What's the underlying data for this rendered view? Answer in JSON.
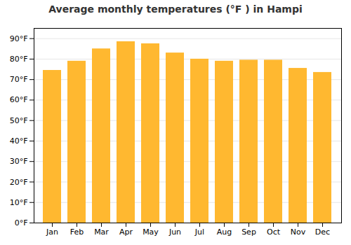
{
  "chart_data": {
    "type": "bar",
    "title": "Average monthly temperatures (°F ) in Hampi",
    "categories": [
      "Jan",
      "Feb",
      "Mar",
      "Apr",
      "May",
      "Jun",
      "Jul",
      "Aug",
      "Sep",
      "Oct",
      "Nov",
      "Dec"
    ],
    "values": [
      74.5,
      79,
      85,
      88.5,
      87.5,
      83,
      80,
      79,
      79.5,
      79.5,
      75.5,
      73.5
    ],
    "color": "#FFB830",
    "ylim": [
      0,
      95
    ],
    "yticks": [
      {
        "value": 0,
        "label": "0°F"
      },
      {
        "value": 10,
        "label": "10°F"
      },
      {
        "value": 20,
        "label": "20°F"
      },
      {
        "value": 30,
        "label": "30°F"
      },
      {
        "value": 40,
        "label": "40°F"
      },
      {
        "value": 50,
        "label": "50°F"
      },
      {
        "value": 60,
        "label": "60°F"
      },
      {
        "value": 70,
        "label": "70°F"
      },
      {
        "value": 80,
        "label": "80°F"
      },
      {
        "value": 90,
        "label": "90°F"
      }
    ],
    "grid": true
  }
}
